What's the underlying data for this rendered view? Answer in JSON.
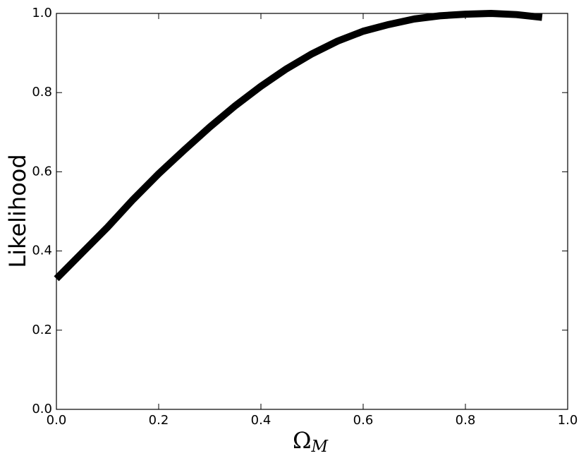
{
  "chart_data": {
    "type": "line",
    "xlabel": {
      "symbol": "Ω",
      "subscript": "M"
    },
    "ylabel": "Likelihood",
    "x": [
      0,
      0.05,
      0.1,
      0.15,
      0.2,
      0.25,
      0.3,
      0.35,
      0.4,
      0.45,
      0.5,
      0.55,
      0.6,
      0.65,
      0.7,
      0.75,
      0.8,
      0.85,
      0.9,
      0.95
    ],
    "series": [
      {
        "color": "#000000",
        "values": [
          0.33,
          0.395,
          0.46,
          0.53,
          0.595,
          0.655,
          0.713,
          0.767,
          0.816,
          0.86,
          0.898,
          0.93,
          0.955,
          0.972,
          0.986,
          0.994,
          0.998,
          1.0,
          0.997,
          0.99
        ]
      }
    ],
    "xlim": [
      0,
      1
    ],
    "ylim": [
      0,
      1
    ],
    "xticks": [
      {
        "value": 0,
        "label": "0.0"
      },
      0.2,
      0.4,
      0.6,
      0.8,
      {
        "value": 1,
        "label": "1.0"
      }
    ],
    "yticks": [
      {
        "value": 0,
        "label": "0.0"
      },
      0.2,
      0.4,
      0.6,
      0.8,
      {
        "value": 1,
        "label": "1.0"
      }
    ],
    "grid": false
  }
}
